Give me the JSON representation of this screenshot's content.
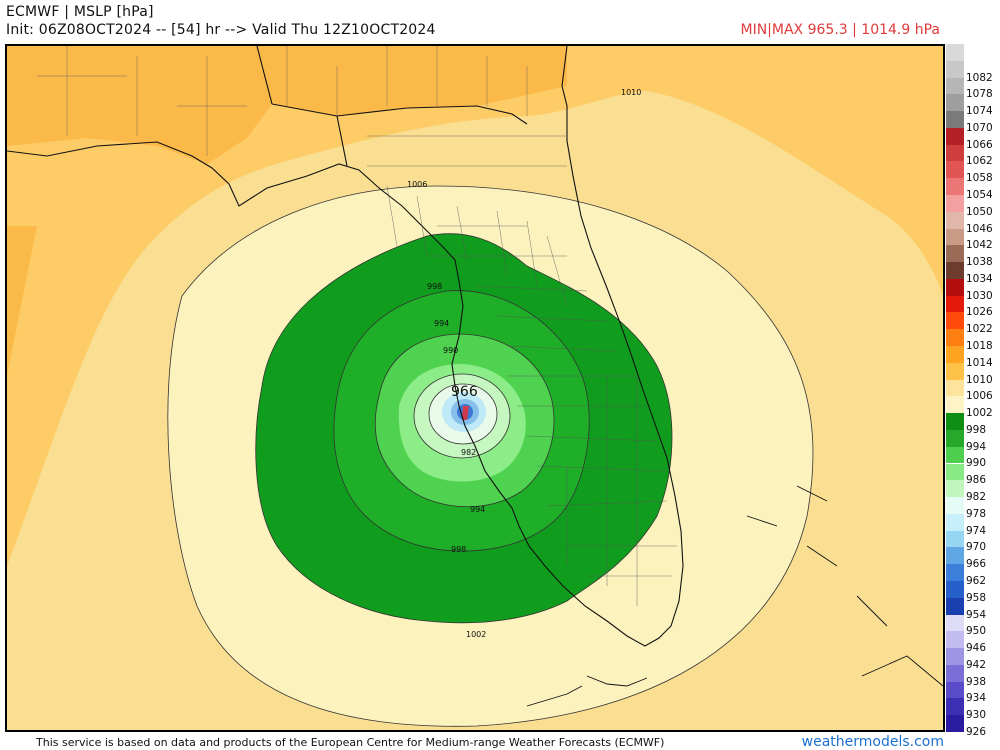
{
  "header": {
    "title": "ECMWF | MSLP [hPa]",
    "subtitle": "Init: 06Z08OCT2024 -- [54] hr --> Valid Thu 12Z10OCT2024",
    "minmax": "MIN|MAX 965.3 | 1014.9 hPa"
  },
  "footer": {
    "attribution": "This service is based on data and products of the European Centre for Medium-range Weather Forecasts (ECMWF)",
    "brand": "weathermodels.com"
  },
  "colors": {
    "ocean_1010": "#fdcc66",
    "land_1006": "#f5e1a2",
    "band_1002": "#fcf2bd",
    "band_998": "#109d1d",
    "band_994": "#1fae28",
    "band_990": "#4fd24f",
    "band_986": "#8cec88",
    "band_982": "#c6f7c1",
    "band_978": "#eafaea",
    "band_974": "#bfe9f7",
    "band_970": "#85bfea",
    "band_966": "#3b79d4",
    "min_center": "#d13a4a",
    "brand": "#1a6fd0"
  },
  "contour_labels": [
    {
      "label": "1010"
    },
    {
      "label": "1006"
    },
    {
      "label": "998"
    },
    {
      "label": "994"
    },
    {
      "label": "990"
    },
    {
      "label": "966"
    },
    {
      "label": "982"
    },
    {
      "label": "994"
    },
    {
      "label": "998"
    },
    {
      "label": "1002"
    }
  ],
  "legend": [
    {
      "value": "",
      "color": "#d9d9d9"
    },
    {
      "value": "1082",
      "color": "#c8c8c8"
    },
    {
      "value": "1078",
      "color": "#b6b6b6"
    },
    {
      "value": "1074",
      "color": "#9e9e9e"
    },
    {
      "value": "1070",
      "color": "#7a7a7a"
    },
    {
      "value": "1066",
      "color": "#b52026"
    },
    {
      "value": "1062",
      "color": "#cf3d3d"
    },
    {
      "value": "1058",
      "color": "#e25555"
    },
    {
      "value": "1054",
      "color": "#ec7575"
    },
    {
      "value": "1050",
      "color": "#f4a0a0"
    },
    {
      "value": "1046",
      "color": "#e0b7a8"
    },
    {
      "value": "1042",
      "color": "#c99b86"
    },
    {
      "value": "1038",
      "color": "#9c6b57"
    },
    {
      "value": "1034",
      "color": "#6e3c2f"
    },
    {
      "value": "1030",
      "color": "#b50e0e"
    },
    {
      "value": "1026",
      "color": "#e61a0b"
    },
    {
      "value": "1022",
      "color": "#ff4a0c"
    },
    {
      "value": "1018",
      "color": "#ff7e12"
    },
    {
      "value": "1014",
      "color": "#ffa422"
    },
    {
      "value": "1010",
      "color": "#fdc247"
    },
    {
      "value": "1006",
      "color": "#fde39b"
    },
    {
      "value": "1002",
      "color": "#fdf3c4"
    },
    {
      "value": "998",
      "color": "#0e8f14"
    },
    {
      "value": "994",
      "color": "#26a92a"
    },
    {
      "value": "990",
      "color": "#4dcf4d"
    },
    {
      "value": "986",
      "color": "#87ea84"
    },
    {
      "value": "982",
      "color": "#c2f6bf"
    },
    {
      "value": "978",
      "color": "#e5fbf6"
    },
    {
      "value": "974",
      "color": "#c6eefb"
    },
    {
      "value": "970",
      "color": "#97d6f2"
    },
    {
      "value": "966",
      "color": "#5fa6e4"
    },
    {
      "value": "962",
      "color": "#3b7fdb"
    },
    {
      "value": "958",
      "color": "#275fca"
    },
    {
      "value": "954",
      "color": "#1a3fae"
    },
    {
      "value": "950",
      "color": "#dedcf7"
    },
    {
      "value": "946",
      "color": "#c2bcf1"
    },
    {
      "value": "942",
      "color": "#9f95e5"
    },
    {
      "value": "938",
      "color": "#7b6ed7"
    },
    {
      "value": "934",
      "color": "#5a4bc8"
    },
    {
      "value": "930",
      "color": "#3c2fb4"
    },
    {
      "value": "926",
      "color": "#2a1ba0"
    }
  ]
}
